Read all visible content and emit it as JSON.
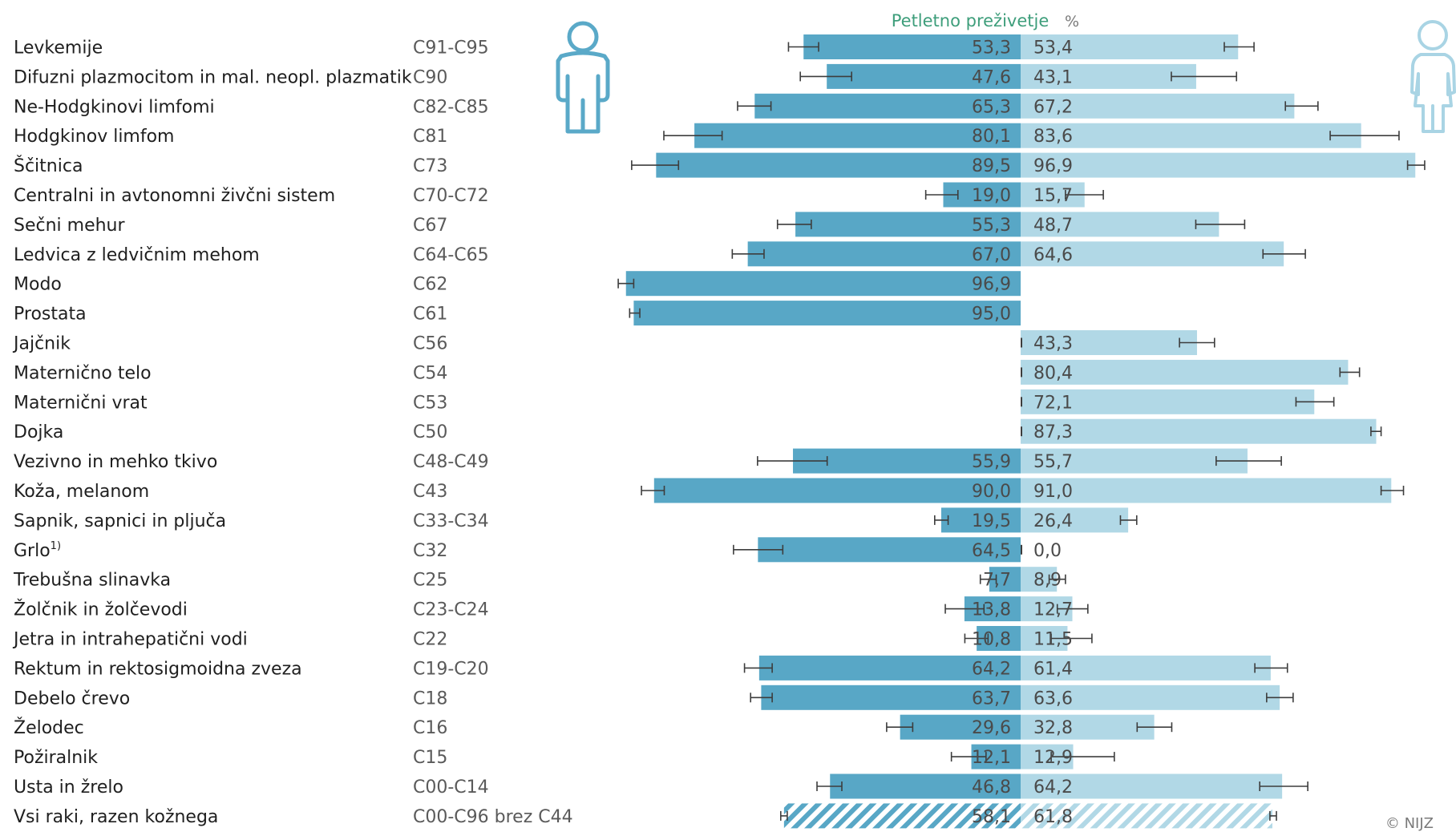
{
  "chart_data": {
    "type": "bar",
    "title": "Petletno preživetje",
    "unit": "%",
    "copyright": "© NIJZ",
    "icons": {
      "male": "male-person-icon",
      "female": "female-person-icon"
    },
    "colors": {
      "male": "#58a7c6",
      "female": "#b1d8e6",
      "error_bar": "#3d3d3d",
      "title": "#3e9e7b"
    },
    "xlim": [
      0,
      100
    ],
    "series": [
      {
        "name": "male"
      },
      {
        "name": "female"
      }
    ],
    "rows": [
      {
        "label": "Levkemije",
        "code": "C91-C95",
        "male": 53.3,
        "male_ci": [
          49.6,
          57.0
        ],
        "male_label": "53,3",
        "female": 53.4,
        "female_ci": [
          50.0,
          57.3
        ],
        "female_label": "53,4"
      },
      {
        "label": "Difuzni plazmocitom in mal. neopl. plazmatik",
        "code": "C90",
        "male": 47.6,
        "male_ci": [
          41.5,
          54.1
        ],
        "male_label": "47,6",
        "female": 43.1,
        "female_ci": [
          37.0,
          53.0
        ],
        "female_label": "43,1"
      },
      {
        "label": "Ne-Hodgkinovi limfomi",
        "code": "C82-C85",
        "male": 65.3,
        "male_ci": [
          61.3,
          69.5
        ],
        "male_label": "65,3",
        "female": 67.2,
        "female_ci": [
          65.0,
          73.0
        ],
        "female_label": "67,2"
      },
      {
        "label": "Hodgkinov limfom",
        "code": "C81",
        "male": 80.1,
        "male_ci": [
          73.3,
          87.6
        ],
        "male_label": "80,1",
        "female": 83.6,
        "female_ci": [
          76.0,
          92.9
        ],
        "female_label": "83,6"
      },
      {
        "label": "Ščitnica",
        "code": "C73",
        "male": 89.5,
        "male_ci": [
          84.0,
          95.5
        ],
        "male_label": "89,5",
        "female": 96.9,
        "female_ci": [
          95.0,
          99.2
        ],
        "female_label": "96,9"
      },
      {
        "label": "Centralni in avtonomni živčni sistem",
        "code": "C70-C72",
        "male": 19.0,
        "male_ci": [
          15.4,
          23.3
        ],
        "male_label": "19,0",
        "female": 15.7,
        "female_ci": [
          11.0,
          20.3
        ],
        "female_label": "15,7"
      },
      {
        "label": "Sečni mehur",
        "code": "C67",
        "male": 55.3,
        "male_ci": [
          51.4,
          59.7
        ],
        "male_label": "55,3",
        "female": 48.7,
        "female_ci": [
          43.0,
          55.0
        ],
        "female_label": "48,7"
      },
      {
        "label": "Ledvica z ledvičnim mehom",
        "code": "C64-C65",
        "male": 67.0,
        "male_ci": [
          63.0,
          70.8
        ],
        "male_label": "67,0",
        "female": 64.6,
        "female_ci": [
          59.5,
          69.9
        ],
        "female_label": "64,6"
      },
      {
        "label": "Modo",
        "code": "C62",
        "male": 96.9,
        "male_ci": [
          95.0,
          98.8
        ],
        "male_label": "96,9",
        "female": null,
        "female_ci": null,
        "female_label": ""
      },
      {
        "label": "Prostata",
        "code": "C61",
        "male": 95.0,
        "male_ci": [
          93.5,
          96.0
        ],
        "male_label": "95,0",
        "female": null,
        "female_ci": null,
        "female_label": ""
      },
      {
        "label": "Jajčnik",
        "code": "C56",
        "male": null,
        "male_ci": null,
        "male_label": "",
        "female": 43.3,
        "female_ci": [
          39.0,
          47.6
        ],
        "female_label": "43,3"
      },
      {
        "label": "Maternično telo",
        "code": "C54",
        "male": null,
        "male_ci": null,
        "male_label": "",
        "female": 80.4,
        "female_ci": [
          78.4,
          83.2
        ],
        "female_label": "80,4"
      },
      {
        "label": "Maternični vrat",
        "code": "C53",
        "male": null,
        "male_ci": null,
        "male_label": "",
        "female": 72.1,
        "female_ci": [
          67.6,
          76.9
        ],
        "female_label": "72,1"
      },
      {
        "label": "Dojka",
        "code": "C50",
        "male": null,
        "male_ci": null,
        "male_label": "",
        "female": 87.3,
        "female_ci": [
          86.0,
          88.5
        ],
        "female_label": "87,3"
      },
      {
        "label": "Vezivno in mehko tkivo",
        "code": "C48-C49",
        "male": 55.9,
        "male_ci": [
          47.5,
          64.6
        ],
        "male_label": "55,9",
        "female": 55.7,
        "female_ci": [
          48.0,
          64.0
        ],
        "female_label": "55,7"
      },
      {
        "label": "Koža, melanom",
        "code": "C43",
        "male": 90.0,
        "male_ci": [
          87.5,
          93.1
        ],
        "male_label": "90,0",
        "female": 91.0,
        "female_ci": [
          88.5,
          94.0
        ],
        "female_label": "91,0"
      },
      {
        "label": "Sapnik, sapnici in pljuča",
        "code": "C33-C34",
        "male": 19.5,
        "male_ci": [
          17.8,
          21.1
        ],
        "male_label": "19,5",
        "female": 26.4,
        "female_ci": [
          24.5,
          28.5
        ],
        "female_label": "26,4"
      },
      {
        "label": "Grlo",
        "label_sup": "1)",
        "code": "C32",
        "male": 64.5,
        "male_ci": [
          58.4,
          70.5
        ],
        "male_label": "64,5",
        "female": 0.0,
        "female_ci": null,
        "female_label": "0,0"
      },
      {
        "label": "Trebušna slinavka",
        "code": "C25",
        "male": 7.7,
        "male_ci": [
          6.0,
          9.9
        ],
        "male_label": "7,7",
        "female": 8.9,
        "female_ci": [
          7.0,
          11.0
        ],
        "female_label": "8,9"
      },
      {
        "label": "Žolčnik in žolčevodi",
        "code": "C23-C24",
        "male": 13.8,
        "male_ci": [
          9.0,
          18.5
        ],
        "male_label": "13,8",
        "female": 12.7,
        "female_ci": [
          9.0,
          16.5
        ],
        "female_label": "12,7"
      },
      {
        "label": "Jetra in intrahepatični vodi",
        "code": "C22",
        "male": 10.8,
        "male_ci": [
          8.0,
          13.7
        ],
        "male_label": "10,8",
        "female": 11.5,
        "female_ci": [
          7.5,
          17.5
        ],
        "female_label": "11,5"
      },
      {
        "label": "Rektum in rektosigmoidna zveza",
        "code": "C19-C20",
        "male": 64.2,
        "male_ci": [
          61.0,
          67.8
        ],
        "male_label": "64,2",
        "female": 61.4,
        "female_ci": [
          57.5,
          65.5
        ],
        "female_label": "61,4"
      },
      {
        "label": "Debelo črevo",
        "code": "C18",
        "male": 63.7,
        "male_ci": [
          61.0,
          66.3
        ],
        "male_label": "63,7",
        "female": 63.6,
        "female_ci": [
          60.4,
          66.9
        ],
        "female_label": "63,6"
      },
      {
        "label": "Želodec",
        "code": "C16",
        "male": 29.6,
        "male_ci": [
          26.5,
          32.9
        ],
        "male_label": "29,6",
        "female": 32.8,
        "female_ci": [
          28.6,
          37.1
        ],
        "female_label": "32,8"
      },
      {
        "label": "Požiralnik",
        "code": "C15",
        "male": 12.1,
        "male_ci": [
          8.5,
          17.0
        ],
        "male_label": "12,1",
        "female": 12.9,
        "female_ci": [
          7.5,
          23.0
        ],
        "female_label": "12,9"
      },
      {
        "label": "Usta in žrelo",
        "code": "C00-C14",
        "male": 46.8,
        "male_ci": [
          43.9,
          50.0
        ],
        "male_label": "46,8",
        "female": 64.2,
        "female_ci": [
          58.7,
          70.5
        ],
        "female_label": "64,2"
      },
      {
        "label": "Vsi raki, razen kožnega",
        "code": "C00-C96 brez C44",
        "male": 58.1,
        "male_ci": [
          57.3,
          58.9
        ],
        "male_label": "58,1",
        "female": 61.8,
        "female_ci": [
          61.2,
          62.8
        ],
        "female_label": "61,8",
        "pattern": "hatched"
      }
    ]
  }
}
